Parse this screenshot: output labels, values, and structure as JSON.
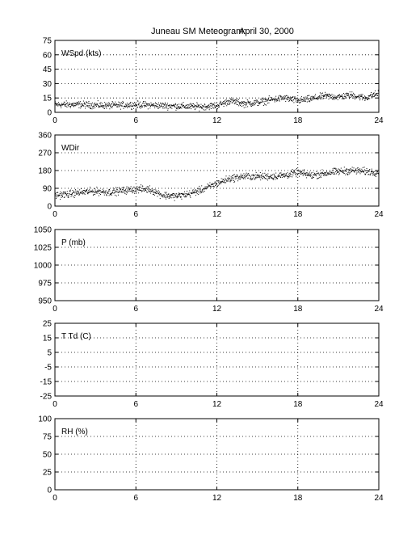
{
  "title": {
    "left": "Juneau SM Meteogram:",
    "right": "April 30, 2000"
  },
  "x_ticks": [
    "0",
    "6",
    "12",
    "18",
    "24"
  ],
  "chart_data": [
    {
      "type": "scatter",
      "label": "WSpd (kts)",
      "xlim": [
        0,
        24
      ],
      "ylim": [
        0,
        75
      ],
      "yticks": [
        "0",
        "15",
        "30",
        "45",
        "60",
        "75"
      ],
      "grid": true,
      "trend": {
        "x": [
          0,
          2,
          4,
          6,
          8,
          10,
          11,
          12,
          13,
          14,
          15,
          16,
          17,
          18,
          19,
          20,
          21,
          22,
          23,
          24
        ],
        "y": [
          8,
          8,
          7,
          8,
          7,
          6,
          6,
          7,
          12,
          9,
          10,
          13,
          15,
          12,
          14,
          17,
          16,
          18,
          15,
          20
        ]
      },
      "spread": 3.5
    },
    {
      "type": "scatter",
      "label": "WDir",
      "xlim": [
        0,
        24
      ],
      "ylim": [
        0,
        360
      ],
      "yticks": [
        "0",
        "90",
        "180",
        "270",
        "360"
      ],
      "grid": true,
      "trend": {
        "x": [
          0,
          1,
          2,
          3,
          4,
          5,
          6,
          7,
          8,
          9,
          10,
          11,
          12,
          13,
          14,
          15,
          16,
          17,
          18,
          19,
          20,
          21,
          22,
          23,
          24
        ],
        "y": [
          55,
          60,
          70,
          75,
          70,
          78,
          85,
          85,
          55,
          50,
          62,
          85,
          115,
          140,
          150,
          150,
          150,
          155,
          170,
          155,
          165,
          175,
          180,
          175,
          170
        ]
      },
      "spread": 18
    },
    {
      "type": "scatter",
      "label": "P (mb)",
      "xlim": [
        0,
        24
      ],
      "ylim": [
        950,
        1050
      ],
      "yticks": [
        "950",
        "975",
        "1000",
        "1025",
        "1050"
      ],
      "grid": true
    },
    {
      "type": "scatter",
      "label": "T Td (C)",
      "xlim": [
        0,
        24
      ],
      "ylim": [
        -25,
        25
      ],
      "yticks": [
        "-25",
        "-15",
        "-5",
        "5",
        "15",
        "25"
      ],
      "grid": true
    },
    {
      "type": "scatter",
      "label": "RH (%)",
      "xlim": [
        0,
        24
      ],
      "ylim": [
        0,
        100
      ],
      "yticks": [
        "0",
        "25",
        "50",
        "75",
        "100"
      ],
      "grid": true
    }
  ]
}
